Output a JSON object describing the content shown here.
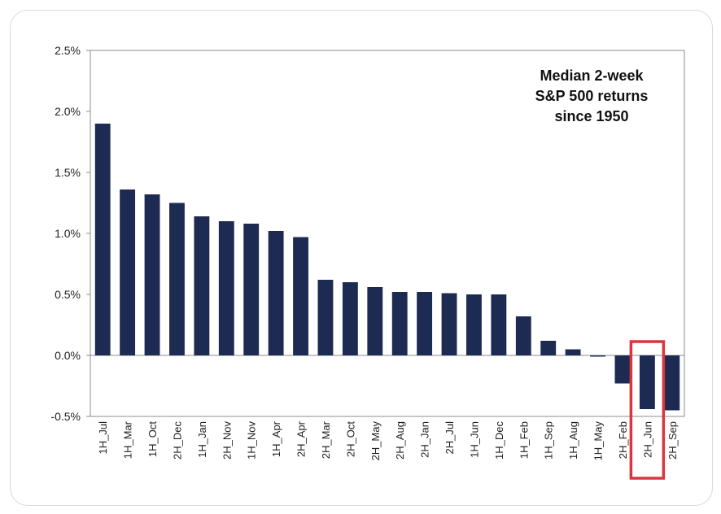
{
  "chart_data": {
    "type": "bar",
    "title_lines": [
      "Median 2-week",
      "S&P 500 returns",
      "since 1950"
    ],
    "categories": [
      "1H_Jul",
      "1H_Mar",
      "1H_Oct",
      "2H_Dec",
      "1H_Jan",
      "2H_Nov",
      "1H_Nov",
      "1H_Apr",
      "2H_Apr",
      "2H_Mar",
      "2H_Oct",
      "2H_May",
      "2H_Aug",
      "2H_Jan",
      "2H_Jul",
      "1H_Jun",
      "1H_Dec",
      "1H_Feb",
      "1H_Sep",
      "1H_Aug",
      "1H_May",
      "2H_Feb",
      "2H_Jun",
      "2H_Sep"
    ],
    "values": [
      1.9,
      1.36,
      1.32,
      1.25,
      1.14,
      1.1,
      1.08,
      1.02,
      0.97,
      0.62,
      0.6,
      0.56,
      0.52,
      0.52,
      0.51,
      0.5,
      0.5,
      0.32,
      0.12,
      0.05,
      -0.01,
      -0.23,
      -0.44,
      -0.45
    ],
    "yticks": [
      "2.5%",
      "2.0%",
      "1.5%",
      "1.0%",
      "0.5%",
      "0.0%",
      "-0.5%"
    ],
    "ylim": [
      -0.5,
      2.5
    ],
    "highlight_category": "2H_Jun",
    "colors": {
      "bar": "#1d2b52",
      "highlight_box": "#d9363e"
    }
  }
}
